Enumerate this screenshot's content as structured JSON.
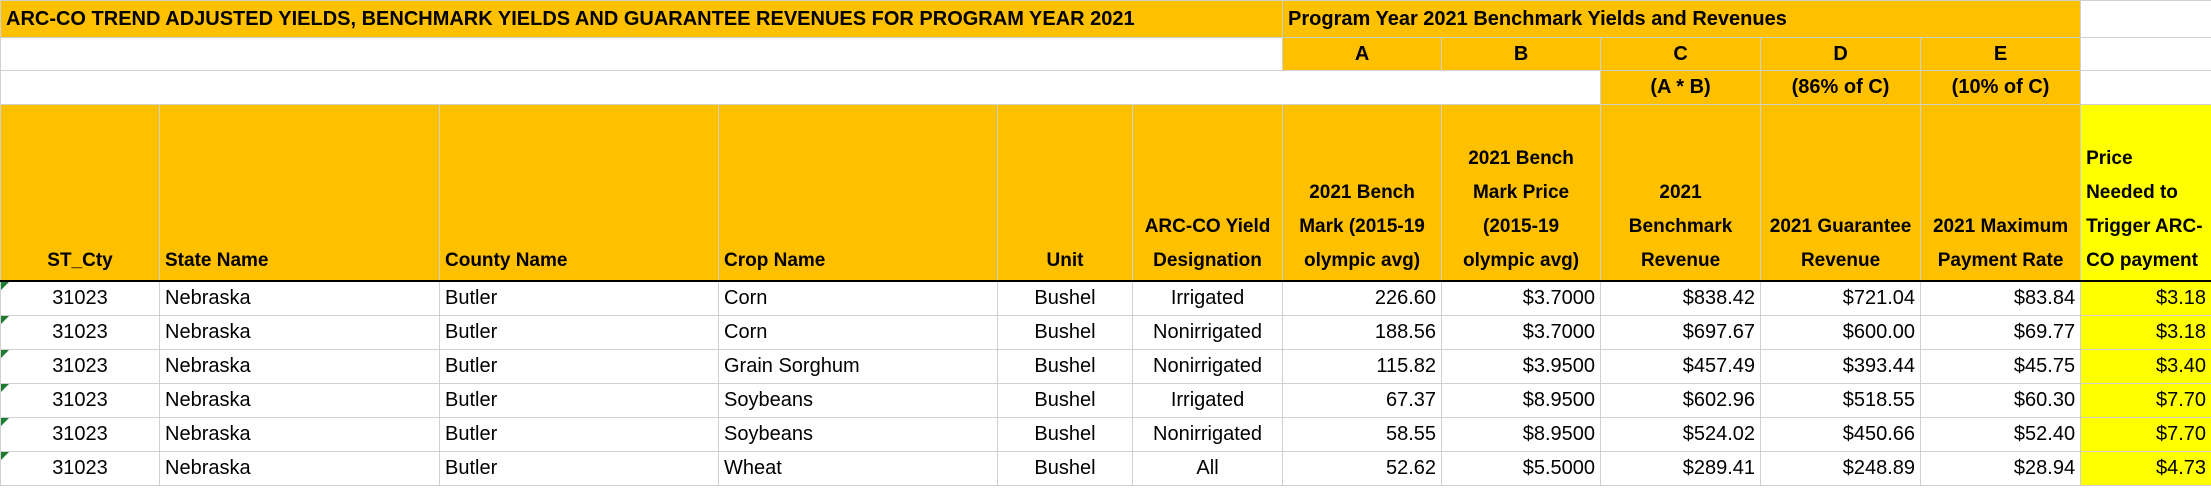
{
  "title": "ARC-CO TREND ADJUSTED YIELDS, BENCHMARK YIELDS AND GUARANTEE REVENUES FOR PROGRAM YEAR 2021",
  "subtitle": "Program Year 2021 Benchmark Yields and  Revenues",
  "column_letters": [
    "A",
    "B",
    "C",
    "D",
    "E"
  ],
  "formulas": [
    "(A * B)",
    "(86% of C)",
    "(10% of C)"
  ],
  "headers": [
    "ST_Cty",
    "State Name",
    "County Name",
    "Crop Name",
    "Unit",
    "ARC-CO Yield Designation",
    "2021 Bench Mark (2015-19 olympic avg)",
    "2021 Bench Mark Price (2015-19 olympic avg)",
    "2021 Benchmark Revenue",
    "2021 Guarantee Revenue",
    "2021 Maximum Payment Rate",
    "Price Needed to Trigger ARC-CO payment"
  ],
  "rows": [
    [
      "31023",
      "Nebraska",
      "Butler",
      "Corn",
      "Bushel",
      "Irrigated",
      "226.60",
      "$3.7000",
      "$838.42",
      "$721.04",
      "$83.84",
      "$3.18"
    ],
    [
      "31023",
      "Nebraska",
      "Butler",
      "Corn",
      "Bushel",
      "Nonirrigated",
      "188.56",
      "$3.7000",
      "$697.67",
      "$600.00",
      "$69.77",
      "$3.18"
    ],
    [
      "31023",
      "Nebraska",
      "Butler",
      "Grain Sorghum",
      "Bushel",
      "Nonirrigated",
      "115.82",
      "$3.9500",
      "$457.49",
      "$393.44",
      "$45.75",
      "$3.40"
    ],
    [
      "31023",
      "Nebraska",
      "Butler",
      "Soybeans",
      "Bushel",
      "Irrigated",
      "67.37",
      "$8.9500",
      "$602.96",
      "$518.55",
      "$60.30",
      "$7.70"
    ],
    [
      "31023",
      "Nebraska",
      "Butler",
      "Soybeans",
      "Bushel",
      "Nonirrigated",
      "58.55",
      "$8.9500",
      "$524.02",
      "$450.66",
      "$52.40",
      "$7.70"
    ],
    [
      "31023",
      "Nebraska",
      "Butler",
      "Wheat",
      "Bushel",
      "All",
      "52.62",
      "$5.5000",
      "$289.41",
      "$248.89",
      "$28.94",
      "$4.73"
    ]
  ]
}
